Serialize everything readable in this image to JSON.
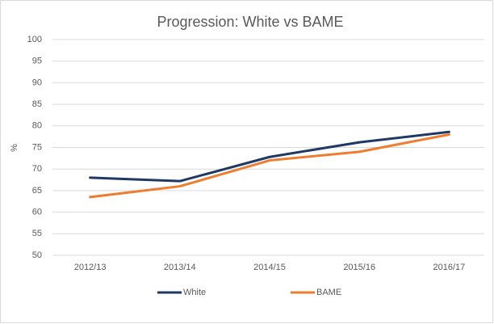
{
  "chart_data": {
    "type": "line",
    "title": "Progression: White vs BAME",
    "y_label": "%",
    "categories": [
      "2012/13",
      "2013/14",
      "2014/15",
      "2015/16",
      "2016/17"
    ],
    "series": [
      {
        "name": "White",
        "color": "#203864",
        "values": [
          68,
          67.2,
          72.8,
          76.2,
          78.6
        ]
      },
      {
        "name": "BAME",
        "color": "#ed7d31",
        "values": [
          63.5,
          66,
          72,
          74,
          78
        ]
      }
    ],
    "ylim": [
      50,
      100
    ],
    "yticks": [
      50,
      55,
      60,
      65,
      70,
      75,
      80,
      85,
      90,
      95,
      100
    ],
    "grid": true,
    "legend": "bottom"
  }
}
